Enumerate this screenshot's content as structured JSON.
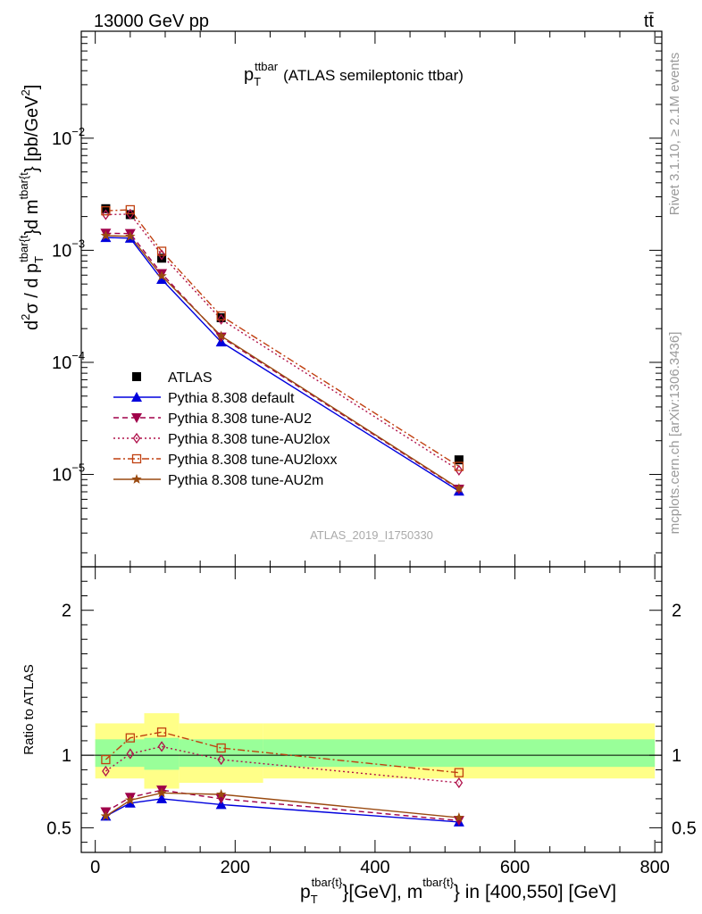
{
  "header": {
    "left": "13000 GeV pp",
    "right": "tt̄"
  },
  "side_labels": {
    "rivet": "Rivet 3.1.10, ≥ 2.1M events",
    "mcplots": "mcplots.cern.ch [arXiv:1306.3436]"
  },
  "chart_data": [
    {
      "type": "line",
      "panel": "main",
      "title_main": "p",
      "title_sub": "T",
      "title_sup": "ttbar",
      "title_rest": "(ATLAS semileptonic ttbar)",
      "ylabel": "d²σ / d p_T^{tbar{t}}d m^{tbar{t}} [pb/GeV²]",
      "ylabel_parts": {
        "d1": "d",
        "d1_sup": "2",
        "sigma": "σ / d p",
        "p_sub": "T",
        "p_sup": "tbar{t",
        "mid": "}d m",
        "m_sup": "tbar{t",
        "end": "} [pb/GeV",
        "end_sup": "2",
        "close": "]"
      },
      "y_scale": "log",
      "ylim": [
        1.5e-06,
        0.09
      ],
      "xlim": [
        -20,
        810
      ],
      "y_ticks": [
        {
          "base": "10",
          "exp": "−5",
          "value": 1e-05
        },
        {
          "base": "10",
          "exp": "−4",
          "value": 0.0001
        },
        {
          "base": "10",
          "exp": "−3",
          "value": 0.001
        },
        {
          "base": "10",
          "exp": "−2",
          "value": 0.01
        }
      ],
      "watermark": "ATLAS_2019_I1750330",
      "legend_position": "bottom-left",
      "x": [
        15,
        50,
        95,
        180,
        520
      ],
      "series": [
        {
          "name": "ATLAS",
          "values": [
            0.00235,
            0.00208,
            0.00085,
            0.00025,
            1.35e-05
          ],
          "color": "#000000",
          "marker": "square",
          "line": "none"
        },
        {
          "name": "Pythia 8.308 default",
          "values": [
            0.0013,
            0.00128,
            0.00055,
            0.000152,
            7.1e-06
          ],
          "color": "#0000dd",
          "marker": "triangle-up",
          "line": "solid"
        },
        {
          "name": "Pythia 8.308 tune-AU2",
          "values": [
            0.00142,
            0.00141,
            0.00062,
            0.000168,
            7.4e-06
          ],
          "color": "#a0004a",
          "marker": "triangle-down",
          "line": "dashed"
        },
        {
          "name": "Pythia 8.308 tune-AU2lox",
          "values": [
            0.00208,
            0.0021,
            0.00091,
            0.000242,
            1.09e-05
          ],
          "color": "#b0104a",
          "marker": "diamond",
          "line": "dotted"
        },
        {
          "name": "Pythia 8.308 tune-AU2loxx",
          "values": [
            0.00225,
            0.0023,
            0.00098,
            0.00026,
            1.18e-05
          ],
          "color": "#c04010",
          "marker": "square-open",
          "line": "dashdot"
        },
        {
          "name": "Pythia 8.308 tune-AU2m",
          "values": [
            0.00135,
            0.00133,
            0.00059,
            0.000172,
            7.5e-06
          ],
          "color": "#9a4a10",
          "marker": "star",
          "line": "solid"
        }
      ]
    },
    {
      "type": "line",
      "panel": "ratio",
      "ylabel": "Ratio to ATLAS",
      "ylim": [
        0.33,
        2.3
      ],
      "xlim": [
        -20,
        810
      ],
      "y_ticks": [
        "0.5",
        "1",
        "2"
      ],
      "x_ticks": [
        "0",
        "200",
        "400",
        "600",
        "800"
      ],
      "xlabel_parts": {
        "p": "p",
        "p_sub": "T",
        "p_sup": "tbar{t}",
        "mid": "}[GeV], m",
        "m_sup": "tbar{t}",
        "end": "} in [400,550] [GeV]"
      },
      "bands": {
        "bins": [
          [
            0,
            70
          ],
          [
            70,
            120
          ],
          [
            120,
            240
          ],
          [
            240,
            800
          ]
        ],
        "inner": [
          [
            0.92,
            1.11
          ],
          [
            0.9,
            1.12
          ],
          [
            0.92,
            1.11
          ],
          [
            0.92,
            1.11
          ]
        ],
        "outer": [
          [
            0.84,
            1.22
          ],
          [
            0.77,
            1.29
          ],
          [
            0.81,
            1.22
          ],
          [
            0.84,
            1.22
          ]
        ],
        "inner_color": "#99ff99",
        "outer_color": "#ffff88"
      },
      "x": [
        15,
        50,
        95,
        180,
        520
      ],
      "series": [
        {
          "name": "Pythia 8.308 default",
          "values": [
            0.58,
            0.67,
            0.7,
            0.66,
            0.54
          ],
          "color": "#0000dd",
          "marker": "triangle-up",
          "line": "solid"
        },
        {
          "name": "Pythia 8.308 tune-AU2",
          "values": [
            0.61,
            0.71,
            0.76,
            0.7,
            0.55
          ],
          "color": "#a0004a",
          "marker": "triangle-down",
          "line": "dashed"
        },
        {
          "name": "Pythia 8.308 tune-AU2lox",
          "values": [
            0.89,
            1.01,
            1.06,
            0.97,
            0.81
          ],
          "color": "#b0104a",
          "marker": "diamond",
          "line": "dotted"
        },
        {
          "name": "Pythia 8.308 tune-AU2loxx",
          "values": [
            0.97,
            1.12,
            1.16,
            1.05,
            0.88
          ],
          "color": "#c04010",
          "marker": "square-open",
          "line": "dashdot"
        },
        {
          "name": "Pythia 8.308 tune-AU2m",
          "values": [
            0.58,
            0.69,
            0.74,
            0.73,
            0.57
          ],
          "color": "#9a4a10",
          "marker": "star",
          "line": "solid"
        }
      ]
    }
  ]
}
